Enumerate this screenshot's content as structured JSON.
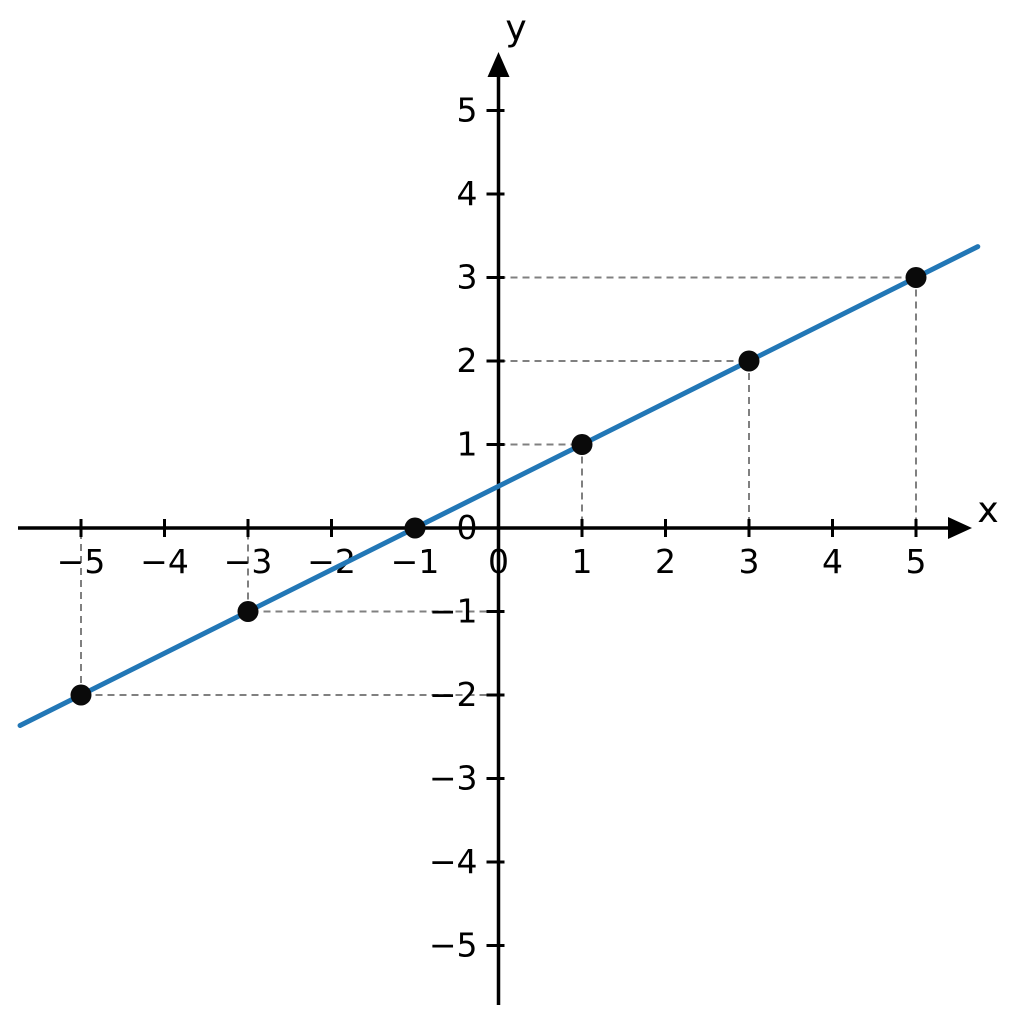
{
  "chart_data": {
    "type": "line",
    "title": "",
    "xlabel": "x",
    "ylabel": "y",
    "xlim": [
      -5.8,
      5.8
    ],
    "ylim": [
      -5.9,
      5.7
    ],
    "grid": false,
    "legend": false,
    "line": {
      "slope": 0.5,
      "intercept": 0.5,
      "x_start": -5.73,
      "x_end": 5.74,
      "color": "#2277b6",
      "width": 5
    },
    "points": [
      {
        "x": -5,
        "y": -2,
        "guide": true
      },
      {
        "x": -3,
        "y": -1,
        "guide": true
      },
      {
        "x": -1,
        "y": 0,
        "guide": false
      },
      {
        "x": 1,
        "y": 1,
        "guide": true
      },
      {
        "x": 3,
        "y": 2,
        "guide": true
      },
      {
        "x": 5,
        "y": 3,
        "guide": true
      }
    ],
    "x_ticks": [
      {
        "value": -5,
        "label": "−5"
      },
      {
        "value": -4,
        "label": "−4"
      },
      {
        "value": -3,
        "label": "−3"
      },
      {
        "value": -2,
        "label": "−2"
      },
      {
        "value": -1,
        "label": "−1"
      },
      {
        "value": 0,
        "label": "0"
      },
      {
        "value": 1,
        "label": "1"
      },
      {
        "value": 2,
        "label": "2"
      },
      {
        "value": 3,
        "label": "3"
      },
      {
        "value": 4,
        "label": "4"
      },
      {
        "value": 5,
        "label": "5"
      }
    ],
    "y_ticks": [
      {
        "value": 5,
        "label": "5"
      },
      {
        "value": 4,
        "label": "4"
      },
      {
        "value": 3,
        "label": "3"
      },
      {
        "value": 2,
        "label": "2"
      },
      {
        "value": 1,
        "label": "1"
      },
      {
        "value": 0,
        "label": "0"
      },
      {
        "value": -1,
        "label": "−1"
      },
      {
        "value": -2,
        "label": "−2"
      },
      {
        "value": -3,
        "label": "−3"
      },
      {
        "value": -4,
        "label": "−4"
      },
      {
        "value": -5,
        "label": "−5"
      }
    ],
    "colors": {
      "axis": "#000000",
      "tick_label": "#000000",
      "guide": "#808080",
      "point": "#0a0a0a",
      "line": "#2277b6",
      "background": "#ffffff"
    }
  }
}
